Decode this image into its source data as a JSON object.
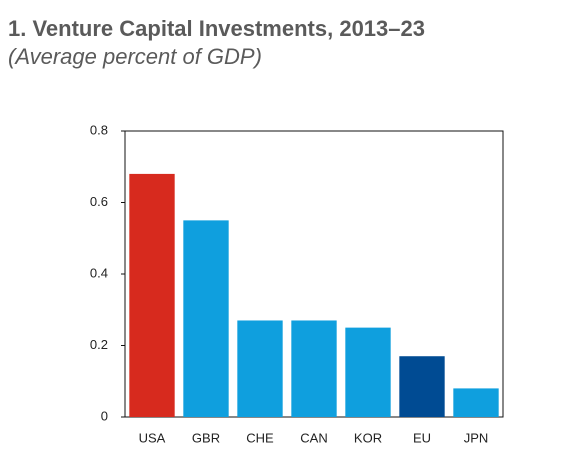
{
  "chart_data": {
    "type": "bar",
    "title": "1. Venture Capital Investments, 2013–23",
    "subtitle": "(Average percent of GDP)",
    "categories": [
      "USA",
      "GBR",
      "CHE",
      "CAN",
      "KOR",
      "EU",
      "JPN"
    ],
    "values": [
      0.68,
      0.55,
      0.27,
      0.27,
      0.25,
      0.17,
      0.08
    ],
    "colors": [
      "#d72a1e",
      "#0f9fde",
      "#0f9fde",
      "#0f9fde",
      "#0f9fde",
      "#004b93",
      "#0f9fde"
    ],
    "ylim": [
      0,
      0.8
    ],
    "yticks": [
      0,
      0.2,
      0.4,
      0.6,
      0.8
    ],
    "grid": false
  }
}
